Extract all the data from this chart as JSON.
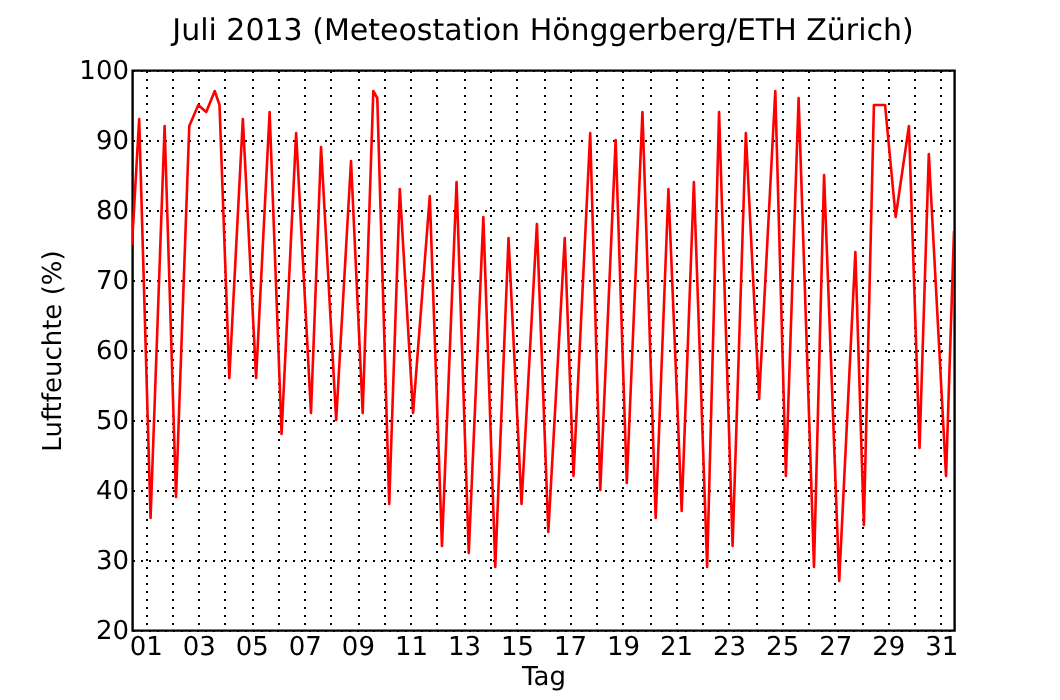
{
  "chart_data": {
    "type": "line",
    "title": "Juli 2013  (Meteostation Hönggerberg/ETH Zürich)",
    "xlabel": "Tag",
    "ylabel": "Luftfeuchte (%)",
    "x": [
      0.5,
      0.77,
      1.2,
      1.73,
      2.16,
      2.66,
      3.0,
      3.3,
      3.62,
      3.8,
      4.17,
      4.68,
      5.18,
      5.69,
      6.14,
      6.69,
      7.25,
      7.63,
      8.2,
      8.76,
      9.2,
      9.6,
      9.75,
      10.2,
      10.6,
      11.1,
      11.73,
      12.19,
      12.74,
      13.2,
      13.75,
      14.2,
      14.7,
      15.19,
      15.77,
      16.2,
      16.82,
      17.15,
      17.78,
      18.16,
      18.74,
      19.16,
      19.75,
      20.25,
      20.73,
      21.23,
      21.69,
      22.19,
      22.64,
      23.15,
      23.65,
      24.15,
      24.76,
      25.16,
      25.64,
      26.22,
      26.6,
      27.17,
      27.78,
      28.1,
      28.48,
      28.9,
      29.3,
      29.8,
      30.2,
      30.55,
      31.2,
      31.5
    ],
    "series": [
      {
        "color": "#ff0000",
        "values": [
          75,
          93,
          36,
          92,
          39,
          92,
          95,
          94,
          97,
          95,
          56,
          93,
          56,
          94,
          48,
          91,
          51,
          89,
          50,
          87,
          51,
          97,
          96,
          38,
          83,
          51,
          82,
          32,
          84,
          31,
          79,
          29,
          76,
          38,
          78,
          34,
          76,
          42,
          91,
          40,
          90,
          41,
          94,
          36,
          83,
          37,
          84,
          29,
          94,
          32,
          91,
          53,
          97,
          42,
          96,
          29,
          85,
          27,
          74,
          35,
          95,
          95,
          79,
          92,
          46,
          88,
          42,
          77
        ]
      }
    ],
    "xlim": [
      0.5,
      31.5
    ],
    "xticks": [
      {
        "value": 1,
        "label": "01"
      },
      {
        "value": 2,
        "label": null
      },
      {
        "value": 3,
        "label": "03"
      },
      {
        "value": 4,
        "label": null
      },
      {
        "value": 5,
        "label": "05"
      },
      {
        "value": 6,
        "label": null
      },
      {
        "value": 7,
        "label": "07"
      },
      {
        "value": 8,
        "label": null
      },
      {
        "value": 9,
        "label": "09"
      },
      {
        "value": 10,
        "label": null
      },
      {
        "value": 11,
        "label": "11"
      },
      {
        "value": 12,
        "label": null
      },
      {
        "value": 13,
        "label": "13"
      },
      {
        "value": 14,
        "label": null
      },
      {
        "value": 15,
        "label": "15"
      },
      {
        "value": 16,
        "label": null
      },
      {
        "value": 17,
        "label": "17"
      },
      {
        "value": 18,
        "label": null
      },
      {
        "value": 19,
        "label": "19"
      },
      {
        "value": 20,
        "label": null
      },
      {
        "value": 21,
        "label": "21"
      },
      {
        "value": 22,
        "label": null
      },
      {
        "value": 23,
        "label": "23"
      },
      {
        "value": 24,
        "label": null
      },
      {
        "value": 25,
        "label": "25"
      },
      {
        "value": 26,
        "label": null
      },
      {
        "value": 27,
        "label": "27"
      },
      {
        "value": 28,
        "label": null
      },
      {
        "value": 29,
        "label": "29"
      },
      {
        "value": 30,
        "label": null
      },
      {
        "value": 31,
        "label": "31"
      }
    ],
    "ylim": [
      20,
      100
    ],
    "yticks": [
      20,
      30,
      40,
      50,
      60,
      70,
      80,
      90,
      100
    ],
    "grid": true,
    "marker": "none",
    "line_style": "solid"
  }
}
